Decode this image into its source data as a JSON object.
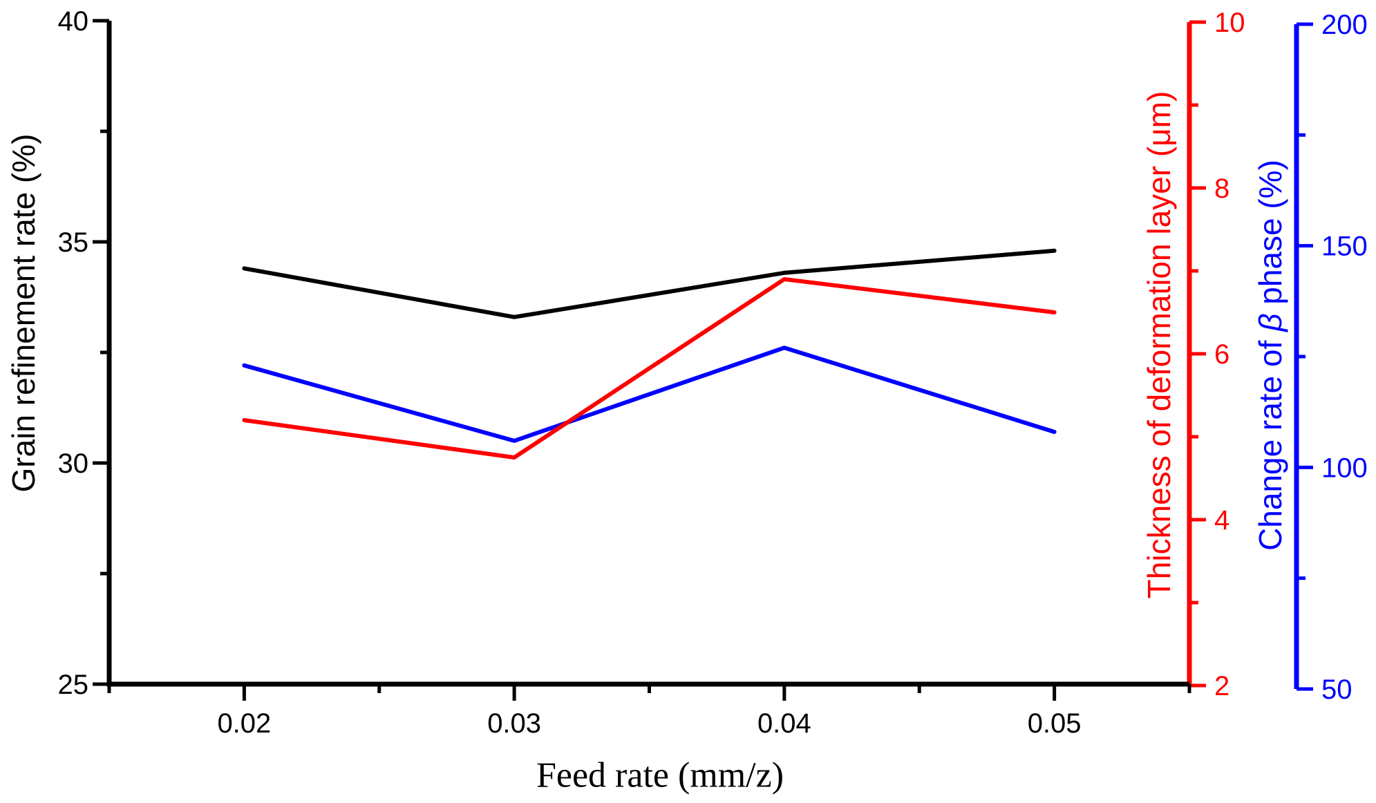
{
  "chart_data": {
    "type": "line",
    "title": "",
    "xlabel": "Feed rate (mm/z)",
    "x": [
      0.02,
      0.03,
      0.04,
      0.05
    ],
    "x_tick_labels": [
      "0.02",
      "0.03",
      "0.04",
      "0.05"
    ],
    "x_axis": {
      "min": 0.015,
      "max": 0.055,
      "minor_step": 0.005,
      "color": "#000000"
    },
    "axes": {
      "left": {
        "title": "Grain refinement rate (%)",
        "color": "#000000",
        "min": 25,
        "max": 40,
        "major_ticks": [
          40,
          35,
          30,
          25
        ],
        "minor_step": 2.5
      },
      "red": {
        "title": "Thickness of deformation layer (μm)",
        "color": "#ff0000",
        "min": 2,
        "max": 10,
        "major_ticks": [
          10,
          8,
          6,
          4,
          2
        ],
        "minor_step": 1
      },
      "blue": {
        "title_prefix": "Change rate of ",
        "title_beta": "β",
        "title_suffix": " phase (%)",
        "color": "#0000ff",
        "min": 50,
        "max": 200,
        "major_ticks": [
          200,
          150,
          100,
          50
        ],
        "minor_step": 25
      }
    },
    "series": [
      {
        "name": "grain-refinement-rate",
        "axis": "left",
        "color": "#000000",
        "values": [
          34.4,
          33.3,
          34.3,
          34.8
        ]
      },
      {
        "name": "change-rate-of-beta-phase",
        "axis": "blue",
        "color": "#0000ff",
        "values": [
          123,
          106,
          127,
          108
        ]
      },
      {
        "name": "thickness-of-deformation-layer",
        "axis": "red",
        "color": "#ff0000",
        "values": [
          5.2,
          4.75,
          6.9,
          6.5
        ]
      }
    ],
    "legend": "none",
    "grid": "off"
  }
}
